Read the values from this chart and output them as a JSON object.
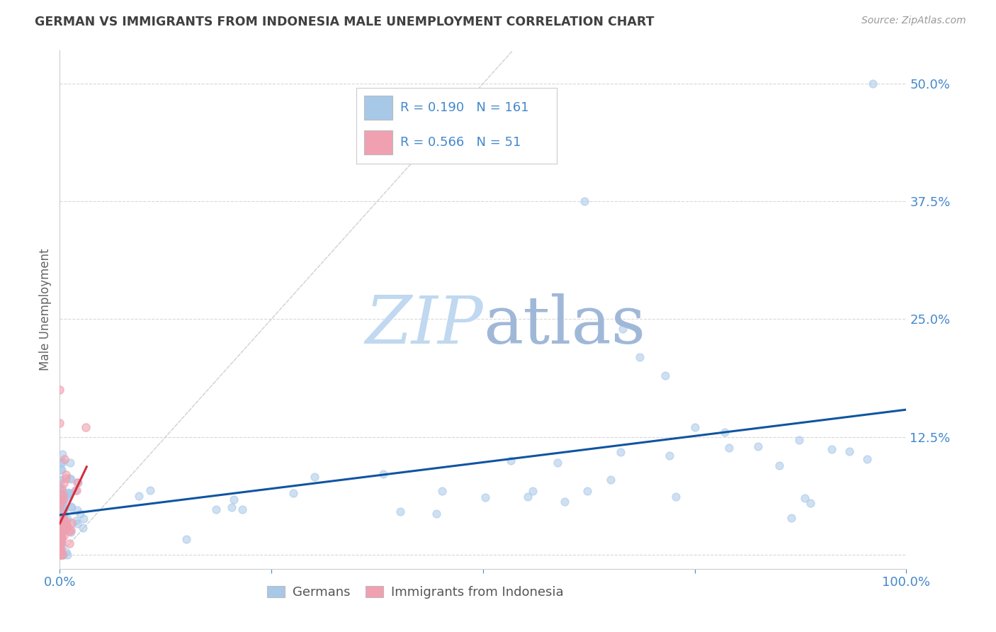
{
  "title": "GERMAN VS IMMIGRANTS FROM INDONESIA MALE UNEMPLOYMENT CORRELATION CHART",
  "source": "Source: ZipAtlas.com",
  "ylabel": "Male Unemployment",
  "xlim": [
    0.0,
    1.0
  ],
  "ylim": [
    -0.015,
    0.535
  ],
  "yticks": [
    0.0,
    0.125,
    0.25,
    0.375,
    0.5
  ],
  "ytick_labels": [
    "",
    "12.5%",
    "25.0%",
    "37.5%",
    "50.0%"
  ],
  "xticks": [
    0.0,
    0.25,
    0.5,
    0.75,
    1.0
  ],
  "xtick_labels": [
    "0.0%",
    "",
    "",
    "",
    "100.0%"
  ],
  "legend_R_german": "0.190",
  "legend_N_german": "161",
  "legend_R_indonesia": "0.566",
  "legend_N_indonesia": "51",
  "german_color": "#a8c8e8",
  "indonesia_color": "#f0a0b0",
  "german_line_color": "#1055a0",
  "indonesia_line_color": "#d03040",
  "identity_line_color": "#c8c8c8",
  "grid_color": "#d8d8d8",
  "title_color": "#404040",
  "axis_label_color": "#4488cc",
  "watermark_zip": "#c0d8f0",
  "watermark_atlas": "#a0b8d8",
  "background_color": "#ffffff",
  "seed": 42,
  "n_german": 161,
  "n_indonesia": 51,
  "german_scatter_size": 60,
  "indonesia_scatter_size": 65
}
